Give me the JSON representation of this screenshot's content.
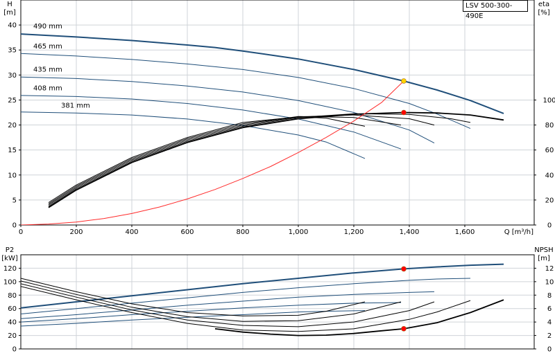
{
  "model": "LSV 500-300-490E",
  "colors": {
    "head": "#1f4e79",
    "eff": "#000000",
    "system": "#ff2a2a",
    "duty_head": "#ffd400",
    "duty_other": "#ff0000",
    "grid": "#cfd3d8"
  },
  "chart_data": [
    {
      "type": "line",
      "id": "head-efficiency",
      "x_label": "Q [m³/h]",
      "y_left_label": [
        "H",
        "[m]"
      ],
      "y_right_label": [
        "eta",
        "[%]"
      ],
      "x_ticks": [
        0,
        200,
        400,
        600,
        800,
        1000,
        1200,
        1400,
        1600
      ],
      "x_tick_labels": [
        "0",
        "200",
        "400",
        "600",
        "800",
        "1,000",
        "1,200",
        "1,400",
        "1,600"
      ],
      "xlim": [
        0,
        1850
      ],
      "ylim_left": [
        0,
        45
      ],
      "ylim_right": [
        0,
        180
      ],
      "y_left_ticks": [
        0,
        5,
        10,
        15,
        20,
        25,
        30,
        35,
        40
      ],
      "y_right_ticks": [
        0,
        20,
        40,
        60,
        80,
        100
      ],
      "grid": true,
      "series": [
        {
          "name": "490 mm",
          "axis": "left",
          "kind": "head",
          "bold": true,
          "x": [
            0,
            200,
            400,
            600,
            700,
            800,
            1000,
            1200,
            1380,
            1500,
            1620,
            1740
          ],
          "y": [
            38.2,
            37.6,
            36.9,
            36.0,
            35.5,
            34.8,
            33.2,
            31.1,
            28.8,
            27.0,
            24.9,
            22.3
          ]
        },
        {
          "name": "465 mm",
          "axis": "left",
          "kind": "head",
          "x": [
            0,
            200,
            400,
            600,
            800,
            1000,
            1200,
            1400,
            1500,
            1620
          ],
          "y": [
            34.3,
            33.8,
            33.1,
            32.2,
            31.1,
            29.5,
            27.3,
            24.3,
            22.2,
            19.3
          ]
        },
        {
          "name": "435 mm",
          "axis": "left",
          "kind": "head",
          "x": [
            0,
            200,
            400,
            600,
            800,
            1000,
            1200,
            1400,
            1490
          ],
          "y": [
            29.6,
            29.3,
            28.7,
            27.8,
            26.6,
            24.9,
            22.5,
            19.0,
            16.4
          ]
        },
        {
          "name": "408 mm",
          "axis": "left",
          "kind": "head",
          "x": [
            0,
            200,
            400,
            600,
            800,
            1000,
            1200,
            1370
          ],
          "y": [
            25.9,
            25.7,
            25.2,
            24.3,
            23.0,
            21.2,
            18.6,
            15.2
          ]
        },
        {
          "name": "381 mm",
          "axis": "left",
          "kind": "head",
          "x": [
            0,
            200,
            400,
            600,
            800,
            1000,
            1100,
            1240
          ],
          "y": [
            22.6,
            22.4,
            22.0,
            21.2,
            19.9,
            18.0,
            16.6,
            13.3
          ]
        },
        {
          "name": "eff 490",
          "axis": "right",
          "kind": "eff",
          "bold": true,
          "x": [
            100,
            200,
            400,
            600,
            800,
            1000,
            1200,
            1380,
            1500,
            1620,
            1740
          ],
          "y": [
            14,
            28,
            50,
            66,
            78,
            85,
            88.6,
            90,
            89.6,
            88,
            84
          ]
        },
        {
          "name": "eff 465",
          "axis": "right",
          "kind": "eff",
          "x": [
            100,
            200,
            400,
            600,
            800,
            1000,
            1200,
            1400,
            1550,
            1620
          ],
          "y": [
            15,
            29,
            51,
            67,
            79,
            86,
            89,
            88.5,
            85,
            82
          ]
        },
        {
          "name": "eff 435",
          "axis": "right",
          "kind": "eff",
          "x": [
            100,
            200,
            400,
            600,
            800,
            1000,
            1200,
            1400,
            1490
          ],
          "y": [
            16,
            30,
            52,
            68,
            80,
            86.5,
            88,
            85,
            80
          ]
        },
        {
          "name": "eff 408",
          "axis": "right",
          "kind": "eff",
          "x": [
            100,
            200,
            400,
            600,
            800,
            1000,
            1200,
            1370
          ],
          "y": [
            17,
            31,
            53,
            69,
            81,
            86.8,
            86,
            80
          ]
        },
        {
          "name": "eff 381",
          "axis": "right",
          "kind": "eff",
          "x": [
            100,
            200,
            400,
            600,
            800,
            1000,
            1100,
            1240
          ],
          "y": [
            18,
            32,
            54,
            70,
            82,
            86.5,
            85.5,
            79
          ]
        },
        {
          "name": "system",
          "axis": "left",
          "kind": "system",
          "x": [
            0,
            100,
            200,
            300,
            400,
            500,
            600,
            700,
            800,
            900,
            1000,
            1100,
            1200,
            1300,
            1380
          ],
          "y": [
            0,
            0.2,
            0.6,
            1.3,
            2.3,
            3.6,
            5.2,
            7.1,
            9.3,
            11.7,
            14.5,
            17.5,
            20.8,
            24.5,
            28.8
          ]
        }
      ],
      "markers": [
        {
          "x": 1380,
          "y": 28.8,
          "axis": "left",
          "color": "#ffd400"
        },
        {
          "x": 1380,
          "y": 90,
          "axis": "right",
          "color": "#ff0000"
        }
      ],
      "curve_labels": [
        {
          "text": "490 mm",
          "x": 45,
          "y": 39.3
        },
        {
          "text": "465 mm",
          "x": 45,
          "y": 35.3
        },
        {
          "text": "435 mm",
          "x": 45,
          "y": 30.7
        },
        {
          "text": "408 mm",
          "x": 45,
          "y": 26.9
        },
        {
          "text": "381 mm",
          "x": 145,
          "y": 23.5
        }
      ]
    },
    {
      "type": "line",
      "id": "power-npsh",
      "y_left_label": [
        "P2",
        "[kW]"
      ],
      "y_right_label": [
        "NPSH",
        "[m]"
      ],
      "xlim": [
        0,
        1850
      ],
      "ylim_left": [
        0,
        140
      ],
      "ylim_right": [
        0,
        14
      ],
      "y_left_ticks": [
        0,
        20,
        40,
        60,
        80,
        100,
        120
      ],
      "y_right_ticks": [
        0,
        2,
        4,
        6,
        8,
        10,
        12
      ],
      "grid": true,
      "series": [
        {
          "name": "P2 490",
          "axis": "left",
          "kind": "power",
          "bold": true,
          "x": [
            0,
            200,
            400,
            600,
            800,
            1000,
            1200,
            1380,
            1500,
            1620,
            1740
          ],
          "y": [
            61,
            70,
            79,
            88,
            97,
            105,
            113,
            119,
            122,
            124.5,
            126
          ]
        },
        {
          "name": "P2 465",
          "axis": "left",
          "kind": "power",
          "x": [
            0,
            200,
            400,
            600,
            800,
            1000,
            1200,
            1400,
            1500,
            1620
          ],
          "y": [
            52,
            60,
            68,
            76,
            84,
            91,
            97,
            102,
            104,
            105
          ]
        },
        {
          "name": "P2 435",
          "axis": "left",
          "kind": "power",
          "x": [
            0,
            200,
            400,
            600,
            800,
            1000,
            1200,
            1400,
            1490
          ],
          "y": [
            45,
            51,
            58,
            65,
            71,
            77,
            81,
            84,
            85
          ]
        },
        {
          "name": "P2 408",
          "axis": "left",
          "kind": "power",
          "x": [
            0,
            200,
            400,
            600,
            800,
            1000,
            1200,
            1370
          ],
          "y": [
            40,
            45,
            51,
            56,
            61,
            65,
            68,
            69
          ]
        },
        {
          "name": "P2 381",
          "axis": "left",
          "kind": "power",
          "x": [
            0,
            200,
            400,
            600,
            800,
            1000,
            1100,
            1240
          ],
          "y": [
            34,
            38,
            43,
            47,
            51,
            55,
            56,
            57
          ]
        },
        {
          "name": "NPSH 490",
          "axis": "right",
          "kind": "npsh",
          "bold": true,
          "x": [
            700,
            800,
            900,
            1000,
            1100,
            1200,
            1300,
            1380,
            1500,
            1620,
            1740
          ],
          "y": [
            3.0,
            2.5,
            2.2,
            2.0,
            2.05,
            2.3,
            2.7,
            3.0,
            3.9,
            5.4,
            7.3
          ]
        },
        {
          "name": "NPSH 465",
          "axis": "right",
          "kind": "npsh",
          "x": [
            0,
            200,
            400,
            600,
            800,
            1000,
            1200,
            1400,
            1500,
            1620
          ],
          "y": [
            9.3,
            7.3,
            5.4,
            3.8,
            2.8,
            2.6,
            3.0,
            4.4,
            5.5,
            7.2
          ]
        },
        {
          "name": "NPSH 435",
          "axis": "right",
          "kind": "npsh",
          "x": [
            0,
            200,
            400,
            600,
            800,
            1000,
            1200,
            1400,
            1490
          ],
          "y": [
            9.7,
            7.7,
            5.8,
            4.3,
            3.5,
            3.3,
            4.0,
            5.7,
            7.0
          ]
        },
        {
          "name": "NPSH 408",
          "axis": "right",
          "kind": "npsh",
          "x": [
            0,
            200,
            400,
            600,
            800,
            1000,
            1200,
            1370
          ],
          "y": [
            10.1,
            8.1,
            6.2,
            4.8,
            4.1,
            4.2,
            5.2,
            7.0
          ]
        },
        {
          "name": "NPSH 381",
          "axis": "right",
          "kind": "npsh",
          "x": [
            0,
            200,
            400,
            600,
            800,
            1000,
            1100,
            1240
          ],
          "y": [
            10.5,
            8.5,
            6.7,
            5.4,
            4.9,
            5.0,
            5.6,
            7.0
          ]
        }
      ],
      "markers": [
        {
          "x": 1380,
          "y": 119,
          "axis": "left",
          "color": "#ff0000"
        },
        {
          "x": 1380,
          "y": 3.0,
          "axis": "right",
          "color": "#ff0000"
        }
      ]
    }
  ]
}
